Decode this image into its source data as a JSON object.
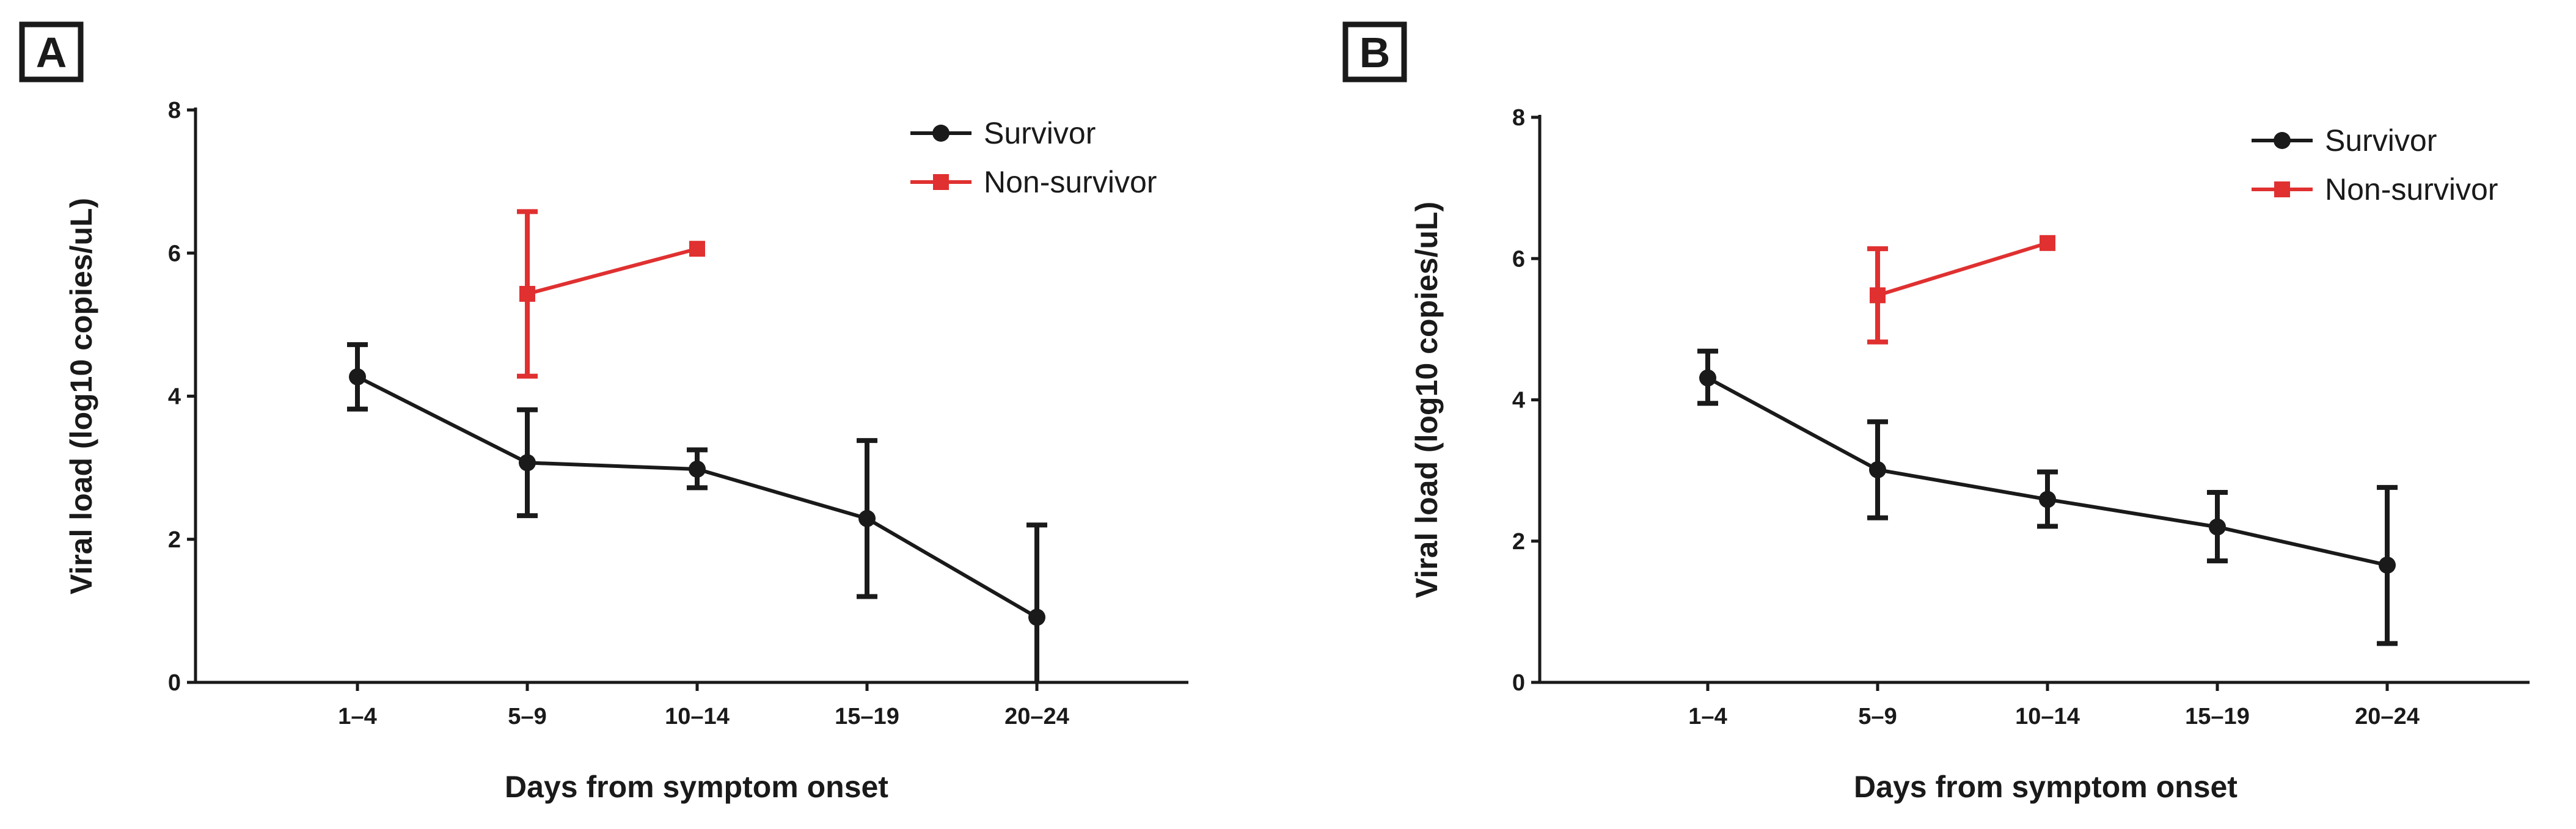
{
  "panels": [
    {
      "label": "A"
    },
    {
      "label": "B"
    }
  ],
  "chart_data": [
    {
      "type": "line",
      "panel": "A",
      "xlabel": "Days from symptom onset",
      "ylabel": "Viral load  (log10 copies/uL)",
      "categories": [
        "1–4",
        "5–9",
        "10–14",
        "15–19",
        "20–24"
      ],
      "ylim": [
        0,
        8
      ],
      "yticks": [
        0,
        2,
        4,
        6,
        8
      ],
      "legend_position": "top-right",
      "series": [
        {
          "name": "Survivor",
          "color": "#1a1a1a",
          "marker": "circle",
          "values": [
            4.27,
            3.07,
            2.98,
            2.29,
            0.91
          ],
          "err_low": [
            3.82,
            2.33,
            2.72,
            1.2,
            0.0
          ],
          "err_high": [
            4.72,
            3.81,
            3.25,
            3.38,
            2.2
          ]
        },
        {
          "name": "Non-survivor",
          "color": "#e03030",
          "marker": "square",
          "values": [
            null,
            5.43,
            6.06,
            null,
            null
          ],
          "err_low": [
            null,
            4.28,
            null,
            null,
            null
          ],
          "err_high": [
            null,
            6.58,
            null,
            null,
            null
          ]
        }
      ]
    },
    {
      "type": "line",
      "panel": "B",
      "xlabel": "Days from symptom onset",
      "ylabel": "Viral load  (log10 copies/uL)",
      "categories": [
        "1–4",
        "5–9",
        "10–14",
        "15–19",
        "20–24"
      ],
      "ylim": [
        0,
        8
      ],
      "yticks": [
        0,
        2,
        4,
        6,
        8
      ],
      "legend_position": "top-right",
      "series": [
        {
          "name": "Survivor",
          "color": "#1a1a1a",
          "marker": "circle",
          "values": [
            4.31,
            3.01,
            2.59,
            2.2,
            1.66
          ],
          "err_low": [
            3.95,
            2.33,
            2.21,
            1.72,
            0.55
          ],
          "err_high": [
            4.69,
            3.69,
            2.98,
            2.69,
            2.76
          ]
        },
        {
          "name": "Non-survivor",
          "color": "#e03030",
          "marker": "square",
          "values": [
            null,
            5.48,
            6.22,
            null,
            null
          ],
          "err_low": [
            null,
            4.82,
            null,
            null,
            null
          ],
          "err_high": [
            null,
            6.14,
            null,
            null,
            null
          ]
        }
      ]
    }
  ]
}
